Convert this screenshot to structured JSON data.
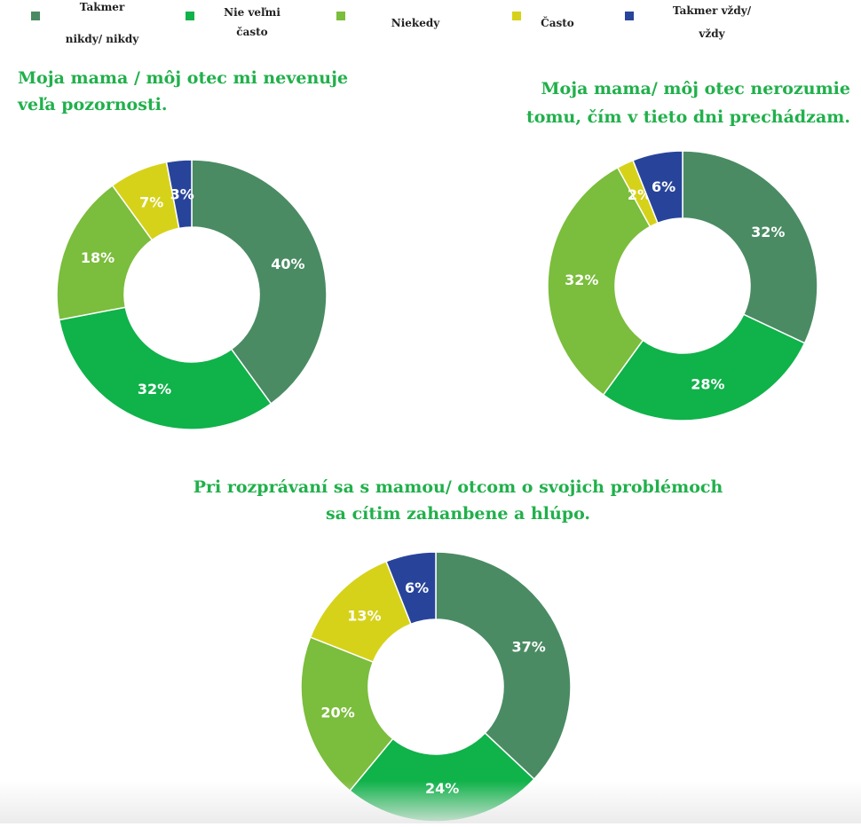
{
  "legend": {
    "items": [
      {
        "lines": [
          "Takmer",
          "nikdy/ nikdy"
        ],
        "color": "#4a8b63"
      },
      {
        "lines": [
          "Nie veľmi",
          "často"
        ],
        "color": "#10b24a"
      },
      {
        "lines": [
          "Niekedy"
        ],
        "color": "#7bbd3c"
      },
      {
        "lines": [
          "Často"
        ],
        "color": "#d6d21a"
      },
      {
        "lines": [
          "Takmer vždy/",
          "vždy"
        ],
        "color": "#28449a"
      }
    ]
  },
  "title_color": "#21b04b",
  "chart_data": [
    {
      "type": "pie",
      "donut": true,
      "title_lines": [
        "Moja mama / môj otec mi nevenuje",
        "veľa pozornosti."
      ],
      "labels": [
        "Takmer nikdy/ nikdy",
        "Nie veľmi často",
        "Niekedy",
        "Často",
        "Takmer vždy/ vždy"
      ],
      "values": [
        40,
        32,
        18,
        7,
        3
      ],
      "value_labels": [
        "40%",
        "32%",
        "18%",
        "7%",
        "3%"
      ],
      "colors": [
        "#4a8b63",
        "#10b24a",
        "#7bbd3c",
        "#d6d21a",
        "#28449a"
      ]
    },
    {
      "type": "pie",
      "donut": true,
      "title_lines": [
        "Moja mama/ môj otec nerozumie",
        "tomu, čím v tieto dni prechádzam."
      ],
      "labels": [
        "Takmer nikdy/ nikdy",
        "Nie veľmi často",
        "Niekedy",
        "Často",
        "Takmer vždy/ vždy"
      ],
      "values": [
        32,
        28,
        32,
        2,
        6
      ],
      "value_labels": [
        "32%",
        "28%",
        "32%",
        "2%",
        "6%"
      ],
      "colors": [
        "#4a8b63",
        "#10b24a",
        "#7bbd3c",
        "#d6d21a",
        "#28449a"
      ]
    },
    {
      "type": "pie",
      "donut": true,
      "title_lines": [
        "Pri rozprávaní sa s mamou/ otcom o svojich problémoch",
        "sa cítim zahanbene a hlúpo."
      ],
      "labels": [
        "Takmer nikdy/ nikdy",
        "Nie veľmi často",
        "Niekedy",
        "Často",
        "Takmer vždy/ vždy"
      ],
      "values": [
        37,
        24,
        20,
        13,
        6
      ],
      "value_labels": [
        "37%",
        "24%",
        "20%",
        "13%",
        "6%"
      ],
      "colors": [
        "#4a8b63",
        "#10b24a",
        "#7bbd3c",
        "#d6d21a",
        "#28449a"
      ]
    }
  ]
}
